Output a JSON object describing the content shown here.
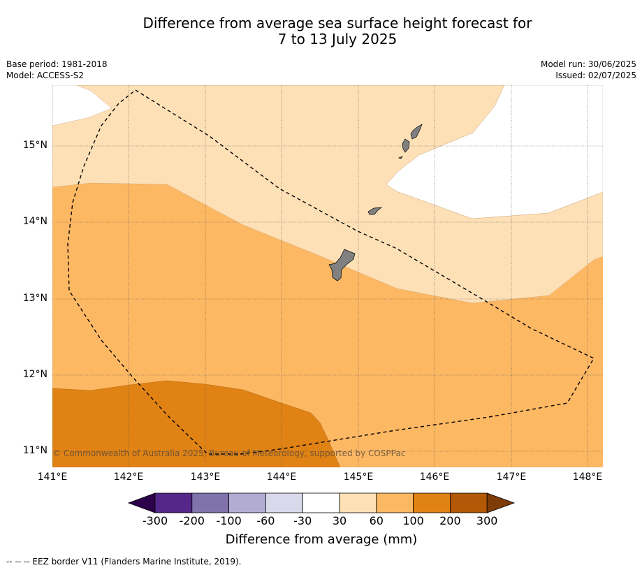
{
  "title": {
    "line1": "Difference from average sea surface height forecast for",
    "line2": "7 to 13 July 2025"
  },
  "meta": {
    "base_period": "Base period: 1981-2018",
    "model": "Model: ACCESS-S2",
    "model_run": "Model run: 30/06/2025",
    "issued": "Issued: 02/07/2025"
  },
  "map": {
    "lon_ticks": [
      "141°E",
      "142°E",
      "143°E",
      "144°E",
      "145°E",
      "146°E",
      "147°E",
      "148°E"
    ],
    "lat_ticks": [
      "15°N",
      "14°N",
      "13°N",
      "12°N",
      "11°N"
    ],
    "lon_range": [
      141,
      148.2
    ],
    "lat_range": [
      10.8,
      15.8
    ],
    "copyright": "© Commonwealth of Australia 2025, Bureau of Meteorology, supported by COSPPac",
    "eez_note": "--  --  -- EEZ border V11 (Flanders Marine Institute, 2019)."
  },
  "colorbar": {
    "title": "Difference from average (mm)",
    "labels": [
      "-300",
      "-200",
      "-100",
      "-60",
      "-30",
      "30",
      "60",
      "100",
      "200",
      "300"
    ],
    "colors": {
      "below_min": "#2d004b",
      "bins": [
        "#542788",
        "#8073ac",
        "#b2abd2",
        "#d8daeb",
        "#ffffff",
        "#fee0b6",
        "#fdb863",
        "#e08214",
        "#b35806"
      ],
      "above_max": "#7f3b08"
    }
  },
  "palette": {
    "land": "#808080",
    "gridline": "#555555"
  }
}
